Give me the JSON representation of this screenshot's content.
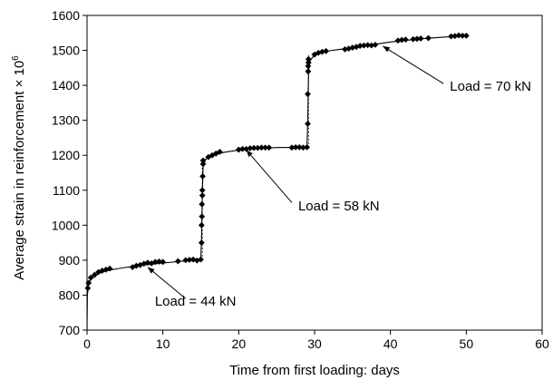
{
  "chart_data": {
    "type": "scatter",
    "title": "",
    "xlabel": "Time from first loading: days",
    "ylabel": "Average strain in reinforcement × 10",
    "ylabel_superscript": "6",
    "xlim": [
      0,
      60
    ],
    "ylim": [
      700,
      1600
    ],
    "xticks": [
      "0",
      "10",
      "20",
      "30",
      "40",
      "50",
      "60"
    ],
    "yticks": [
      "700",
      "800",
      "900",
      "1000",
      "1100",
      "1200",
      "1300",
      "1400",
      "1500",
      "1600"
    ],
    "grid": false,
    "legend": "none",
    "marker_color": "#000000",
    "series": [
      {
        "values": [
          {
            "x": 0.1,
            "y": 820
          },
          {
            "x": 0.2,
            "y": 835
          },
          {
            "x": 0.5,
            "y": 850
          },
          {
            "x": 1.0,
            "y": 858
          },
          {
            "x": 1.5,
            "y": 866
          },
          {
            "x": 2.0,
            "y": 870
          },
          {
            "x": 2.5,
            "y": 873
          },
          {
            "x": 3.0,
            "y": 876
          },
          {
            "x": 6.0,
            "y": 880
          },
          {
            "x": 6.5,
            "y": 884
          },
          {
            "x": 7.0,
            "y": 886
          },
          {
            "x": 7.5,
            "y": 890
          },
          {
            "x": 8.0,
            "y": 893
          },
          {
            "x": 8.5,
            "y": 891
          },
          {
            "x": 9.0,
            "y": 895
          },
          {
            "x": 9.5,
            "y": 896
          },
          {
            "x": 10.0,
            "y": 895
          },
          {
            "x": 12.0,
            "y": 897
          },
          {
            "x": 13.0,
            "y": 900
          },
          {
            "x": 13.5,
            "y": 901
          },
          {
            "x": 14.0,
            "y": 902
          },
          {
            "x": 14.5,
            "y": 899
          },
          {
            "x": 15.0,
            "y": 902
          },
          {
            "x": 15.1,
            "y": 950
          },
          {
            "x": 15.1,
            "y": 1000
          },
          {
            "x": 15.15,
            "y": 1025
          },
          {
            "x": 15.15,
            "y": 1060
          },
          {
            "x": 15.2,
            "y": 1085
          },
          {
            "x": 15.2,
            "y": 1100
          },
          {
            "x": 15.25,
            "y": 1140
          },
          {
            "x": 15.3,
            "y": 1175
          },
          {
            "x": 15.3,
            "y": 1185
          },
          {
            "x": 16.0,
            "y": 1195
          },
          {
            "x": 16.5,
            "y": 1200
          },
          {
            "x": 17.0,
            "y": 1205
          },
          {
            "x": 17.5,
            "y": 1210
          },
          {
            "x": 20.0,
            "y": 1216
          },
          {
            "x": 20.5,
            "y": 1218
          },
          {
            "x": 21.0,
            "y": 1218
          },
          {
            "x": 21.5,
            "y": 1220
          },
          {
            "x": 22.0,
            "y": 1221
          },
          {
            "x": 22.5,
            "y": 1221
          },
          {
            "x": 23.0,
            "y": 1222
          },
          {
            "x": 23.5,
            "y": 1222
          },
          {
            "x": 24.0,
            "y": 1222
          },
          {
            "x": 27.0,
            "y": 1222
          },
          {
            "x": 27.5,
            "y": 1223
          },
          {
            "x": 28.0,
            "y": 1223
          },
          {
            "x": 28.5,
            "y": 1222
          },
          {
            "x": 29.0,
            "y": 1223
          },
          {
            "x": 29.1,
            "y": 1290
          },
          {
            "x": 29.1,
            "y": 1375
          },
          {
            "x": 29.15,
            "y": 1440
          },
          {
            "x": 29.15,
            "y": 1455
          },
          {
            "x": 29.2,
            "y": 1465
          },
          {
            "x": 29.2,
            "y": 1475
          },
          {
            "x": 30.0,
            "y": 1488
          },
          {
            "x": 30.5,
            "y": 1493
          },
          {
            "x": 31.0,
            "y": 1496
          },
          {
            "x": 31.5,
            "y": 1498
          },
          {
            "x": 34.0,
            "y": 1503
          },
          {
            "x": 34.5,
            "y": 1505
          },
          {
            "x": 35.0,
            "y": 1508
          },
          {
            "x": 35.5,
            "y": 1510
          },
          {
            "x": 36.0,
            "y": 1513
          },
          {
            "x": 36.5,
            "y": 1514
          },
          {
            "x": 37.0,
            "y": 1515
          },
          {
            "x": 37.5,
            "y": 1514
          },
          {
            "x": 38.0,
            "y": 1516
          },
          {
            "x": 41.0,
            "y": 1528
          },
          {
            "x": 41.5,
            "y": 1530
          },
          {
            "x": 42.0,
            "y": 1531
          },
          {
            "x": 43.0,
            "y": 1532
          },
          {
            "x": 43.5,
            "y": 1533
          },
          {
            "x": 44.0,
            "y": 1534
          },
          {
            "x": 45.0,
            "y": 1535
          },
          {
            "x": 48.0,
            "y": 1540
          },
          {
            "x": 48.5,
            "y": 1541
          },
          {
            "x": 49.0,
            "y": 1543
          },
          {
            "x": 49.5,
            "y": 1542
          },
          {
            "x": 50.0,
            "y": 1542
          }
        ]
      }
    ],
    "fit_curve": [
      {
        "x": 0.0,
        "y": 700
      },
      {
        "x": 0.05,
        "y": 800
      },
      {
        "x": 0.2,
        "y": 832
      },
      {
        "x": 0.5,
        "y": 846
      },
      {
        "x": 1.0,
        "y": 856
      },
      {
        "x": 2.0,
        "y": 866
      },
      {
        "x": 3.0,
        "y": 872
      },
      {
        "x": 5.0,
        "y": 879
      },
      {
        "x": 7.0,
        "y": 885
      },
      {
        "x": 10.0,
        "y": 892
      },
      {
        "x": 13.0,
        "y": 898
      },
      {
        "x": 15.0,
        "y": 902
      },
      {
        "x": 15.1,
        "y": 960
      },
      {
        "x": 15.2,
        "y": 1090
      },
      {
        "x": 15.3,
        "y": 1165
      },
      {
        "x": 15.6,
        "y": 1188
      },
      {
        "x": 16.5,
        "y": 1199
      },
      {
        "x": 18.0,
        "y": 1208
      },
      {
        "x": 20.0,
        "y": 1215
      },
      {
        "x": 22.0,
        "y": 1219
      },
      {
        "x": 25.0,
        "y": 1222
      },
      {
        "x": 29.0,
        "y": 1223
      },
      {
        "x": 29.1,
        "y": 1300
      },
      {
        "x": 29.2,
        "y": 1440
      },
      {
        "x": 29.4,
        "y": 1470
      },
      {
        "x": 30.0,
        "y": 1488
      },
      {
        "x": 31.0,
        "y": 1496
      },
      {
        "x": 33.0,
        "y": 1502
      },
      {
        "x": 36.0,
        "y": 1511
      },
      {
        "x": 40.0,
        "y": 1524
      },
      {
        "x": 44.0,
        "y": 1533
      },
      {
        "x": 47.0,
        "y": 1538
      },
      {
        "x": 50.0,
        "y": 1542
      }
    ],
    "annotations": [
      {
        "text": "Load = 44 kN",
        "x": 14.3,
        "y": 770,
        "arrow_from": [
          13.0,
          790
        ],
        "arrow_to": [
          8.0,
          880
        ]
      },
      {
        "text": "Load = 58 kN",
        "x": 33.2,
        "y": 1043,
        "arrow_from": [
          27.0,
          1065
        ],
        "arrow_to": [
          21.0,
          1215
        ]
      },
      {
        "text": "Load = 70 kN",
        "x": 53.2,
        "y": 1385,
        "arrow_from": [
          47.0,
          1405
        ],
        "arrow_to": [
          39.0,
          1512
        ]
      }
    ]
  }
}
